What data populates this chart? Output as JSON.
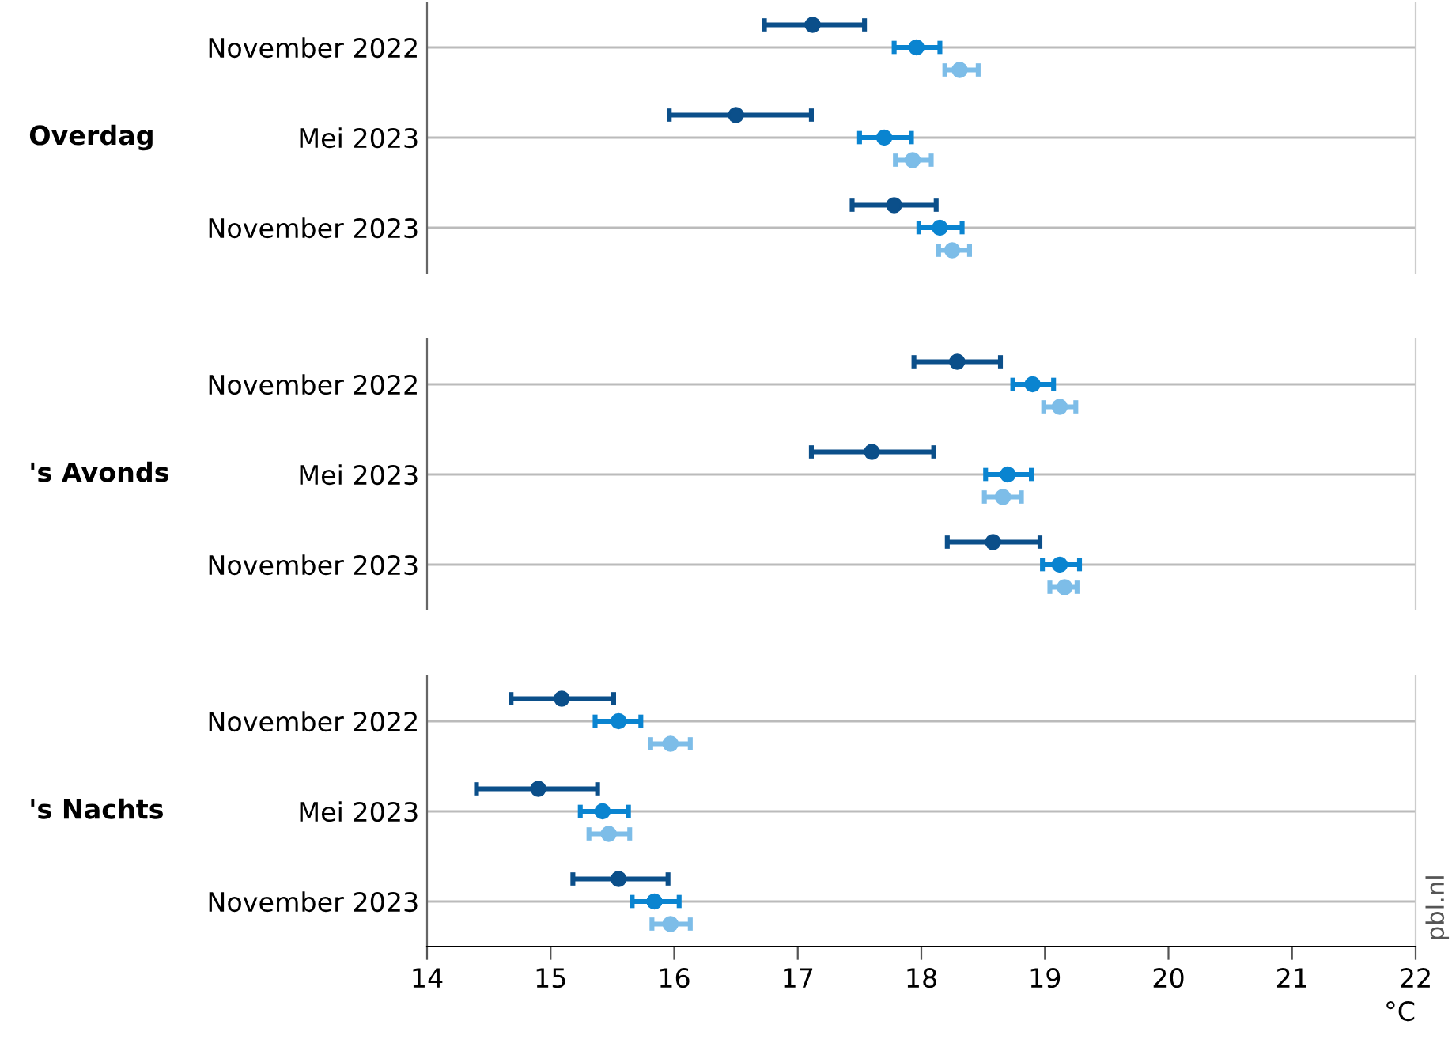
{
  "chart_data": [
    {
      "type": "scatter",
      "orientation": "horizontal",
      "ylabel": "Overdag",
      "categories": [
        "November 2022",
        "Mei 2023",
        "November 2023"
      ],
      "xlim": [
        14,
        22
      ],
      "xticks": [
        14,
        15,
        16,
        17,
        18,
        19,
        20,
        21,
        22
      ],
      "tick_labels": "y",
      "grid": "y",
      "marker": "circle",
      "legend": false,
      "series": [
        {
          "color": "#0b4f8a",
          "values": [
            17.12,
            16.5,
            17.78
          ],
          "errors": [
            [
              16.73,
              17.54
            ],
            [
              15.96,
              17.11
            ],
            [
              17.44,
              18.12
            ]
          ]
        },
        {
          "color": "#0a84d0",
          "values": [
            17.96,
            17.7,
            18.15
          ],
          "errors": [
            [
              17.78,
              18.15
            ],
            [
              17.5,
              17.92
            ],
            [
              17.98,
              18.33
            ]
          ]
        },
        {
          "color": "#7dbde8",
          "values": [
            18.31,
            17.93,
            18.25
          ],
          "errors": [
            [
              18.19,
              18.46
            ],
            [
              17.79,
              18.08
            ],
            [
              18.14,
              18.39
            ]
          ]
        }
      ]
    },
    {
      "type": "scatter",
      "orientation": "horizontal",
      "ylabel": "'s Avonds",
      "categories": [
        "November 2022",
        "Mei 2023",
        "November 2023"
      ],
      "xlim": [
        14,
        22
      ],
      "xticks": [
        14,
        15,
        16,
        17,
        18,
        19,
        20,
        21,
        22
      ],
      "tick_labels": "y",
      "grid": "y",
      "marker": "circle",
      "legend": false,
      "series": [
        {
          "color": "#0b4f8a",
          "values": [
            18.29,
            17.6,
            18.58
          ],
          "errors": [
            [
              17.94,
              18.64
            ],
            [
              17.11,
              18.1
            ],
            [
              18.21,
              18.96
            ]
          ]
        },
        {
          "color": "#0a84d0",
          "values": [
            18.9,
            18.7,
            19.12
          ],
          "errors": [
            [
              18.74,
              19.07
            ],
            [
              18.52,
              18.89
            ],
            [
              18.98,
              19.28
            ]
          ]
        },
        {
          "color": "#7dbde8",
          "values": [
            19.12,
            18.66,
            19.16
          ],
          "errors": [
            [
              18.99,
              19.25
            ],
            [
              18.51,
              18.81
            ],
            [
              19.04,
              19.26
            ]
          ]
        }
      ]
    },
    {
      "type": "scatter",
      "orientation": "horizontal",
      "ylabel": "'s Nachts",
      "xlabel": "°C",
      "categories": [
        "November 2022",
        "Mei 2023",
        "November 2023"
      ],
      "xlim": [
        14,
        22
      ],
      "xticks": [
        14,
        15,
        16,
        17,
        18,
        19,
        20,
        21,
        22
      ],
      "grid": "y",
      "marker": "circle",
      "legend": false,
      "annotations": [
        "pbl.nl"
      ],
      "series": [
        {
          "color": "#0b4f8a",
          "values": [
            15.09,
            14.9,
            15.55
          ],
          "errors": [
            [
              14.68,
              15.51
            ],
            [
              14.4,
              15.38
            ],
            [
              15.18,
              15.95
            ]
          ]
        },
        {
          "color": "#0a84d0",
          "values": [
            15.55,
            15.42,
            15.84
          ],
          "errors": [
            [
              15.36,
              15.73
            ],
            [
              15.24,
              15.63
            ],
            [
              15.66,
              16.04
            ]
          ]
        },
        {
          "color": "#7dbde8",
          "values": [
            15.97,
            15.47,
            15.97
          ],
          "errors": [
            [
              15.81,
              16.13
            ],
            [
              15.31,
              15.64
            ],
            [
              15.82,
              16.13
            ]
          ]
        }
      ]
    }
  ]
}
